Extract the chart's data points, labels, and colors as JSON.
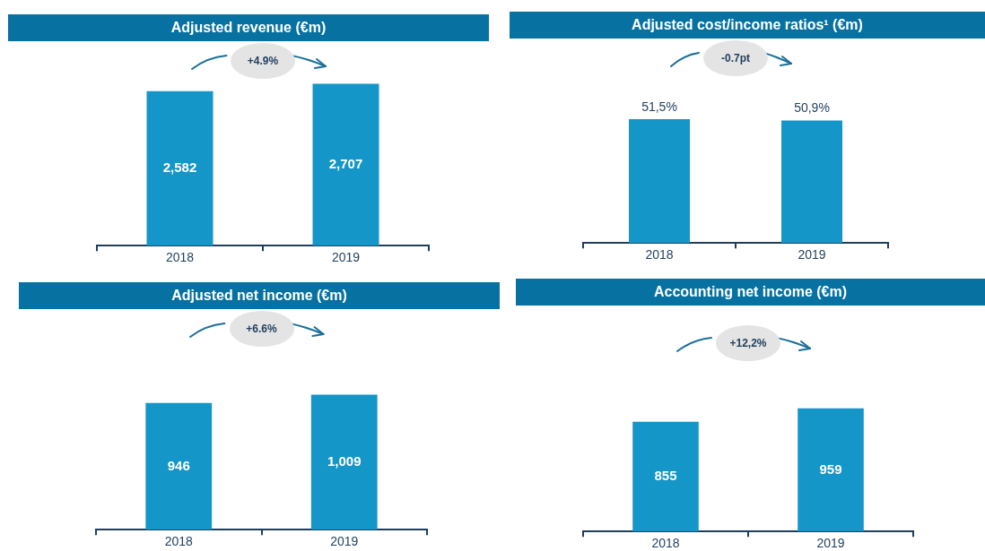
{
  "chart_data": [
    {
      "type": "bar",
      "title": "Adjusted revenue (€m)",
      "categories": [
        "2018",
        "2019"
      ],
      "values": [
        2582,
        2707
      ],
      "color": "#1596c8",
      "value_labels": [
        "2,582",
        "2,707"
      ],
      "annotations": [
        "+4.9%"
      ]
    },
    {
      "type": "bar",
      "title": "Adjusted cost/income ratios¹ (€m)",
      "categories": [
        "2018",
        "2019"
      ],
      "values": [
        51.5,
        50.9
      ],
      "color": "#1596c8",
      "value_labels": [
        "51,5%",
        "50,9%"
      ],
      "annotations": [
        "-0.7pt"
      ]
    },
    {
      "type": "bar",
      "title": "Adjusted net income (€m)",
      "categories": [
        "2018",
        "2019"
      ],
      "values": [
        946,
        1009
      ],
      "color": "#1596c8",
      "value_labels": [
        "946",
        "1,009"
      ],
      "annotations": [
        "+6.6%"
      ]
    },
    {
      "type": "bar",
      "title": "Accounting net income (€m)",
      "categories": [
        "2018",
        "2019"
      ],
      "values": [
        855,
        959
      ],
      "color": "#1596c8",
      "value_labels": [
        "855",
        "959"
      ],
      "annotations": [
        "+12,2%"
      ]
    }
  ]
}
